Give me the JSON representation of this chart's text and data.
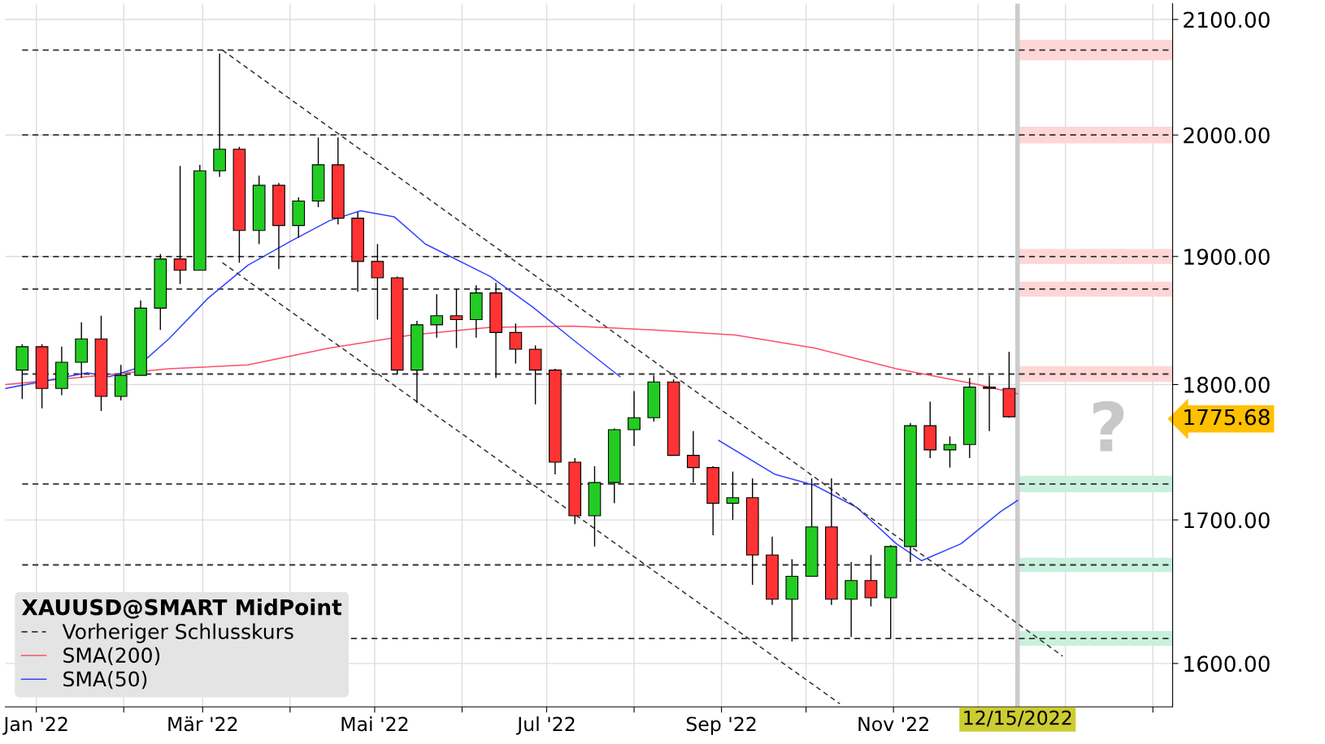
{
  "chart_data": {
    "type": "candlestick",
    "legend_title": "XAUUSD@SMART MidPoint",
    "x": [
      "2021-12-27",
      "2022-01-03",
      "2022-01-10",
      "2022-01-17",
      "2022-01-24",
      "2022-01-31",
      "2022-02-07",
      "2022-02-14",
      "2022-02-21",
      "2022-02-28",
      "2022-03-07",
      "2022-03-14",
      "2022-03-21",
      "2022-03-28",
      "2022-04-04",
      "2022-04-11",
      "2022-04-18",
      "2022-04-25",
      "2022-05-02",
      "2022-05-09",
      "2022-05-16",
      "2022-05-23",
      "2022-05-30",
      "2022-06-06",
      "2022-06-13",
      "2022-06-20",
      "2022-06-27",
      "2022-07-04",
      "2022-07-11",
      "2022-07-18",
      "2022-07-25",
      "2022-08-01",
      "2022-08-08",
      "2022-08-15",
      "2022-08-22",
      "2022-08-29",
      "2022-09-05",
      "2022-09-12",
      "2022-09-19",
      "2022-09-26",
      "2022-10-03",
      "2022-10-10",
      "2022-10-17",
      "2022-10-24",
      "2022-10-31",
      "2022-11-07",
      "2022-11-14",
      "2022-11-21",
      "2022-11-28",
      "2022-12-05",
      "2022-12-12"
    ],
    "ohlc": [
      [
        1811,
        1831,
        1789,
        1829
      ],
      [
        1829,
        1831,
        1782,
        1797
      ],
      [
        1797,
        1829,
        1792,
        1817
      ],
      [
        1817,
        1848,
        1805,
        1835
      ],
      [
        1835,
        1853,
        1780,
        1791
      ],
      [
        1791,
        1815,
        1788,
        1807
      ],
      [
        1807,
        1865,
        1807,
        1859
      ],
      [
        1859,
        1902,
        1842,
        1898
      ],
      [
        1898,
        1974,
        1878,
        1889
      ],
      [
        1889,
        1975,
        1889,
        1970
      ],
      [
        1970,
        2070,
        1965,
        1988
      ],
      [
        1988,
        1990,
        1895,
        1921
      ],
      [
        1921,
        1966,
        1910,
        1958
      ],
      [
        1958,
        1960,
        1890,
        1925
      ],
      [
        1925,
        1948,
        1915,
        1945
      ],
      [
        1945,
        1998,
        1940,
        1975
      ],
      [
        1975,
        1998,
        1926,
        1931
      ],
      [
        1931,
        1936,
        1872,
        1896
      ],
      [
        1896,
        1910,
        1850,
        1883
      ],
      [
        1883,
        1884,
        1808,
        1811
      ],
      [
        1811,
        1849,
        1786,
        1846
      ],
      [
        1846,
        1870,
        1836,
        1853
      ],
      [
        1853,
        1874,
        1828,
        1850
      ],
      [
        1850,
        1877,
        1836,
        1871
      ],
      [
        1871,
        1879,
        1805,
        1840
      ],
      [
        1840,
        1847,
        1816,
        1827
      ],
      [
        1827,
        1830,
        1785,
        1811
      ],
      [
        1811,
        1812,
        1733,
        1742
      ],
      [
        1742,
        1745,
        1697,
        1703
      ],
      [
        1703,
        1739,
        1681,
        1727
      ],
      [
        1727,
        1767,
        1712,
        1766
      ],
      [
        1766,
        1795,
        1754,
        1775
      ],
      [
        1775,
        1807,
        1772,
        1802
      ],
      [
        1802,
        1804,
        1747,
        1747
      ],
      [
        1747,
        1765,
        1727,
        1738
      ],
      [
        1738,
        1739,
        1689,
        1712
      ],
      [
        1712,
        1735,
        1700,
        1716
      ],
      [
        1716,
        1730,
        1654,
        1675
      ],
      [
        1675,
        1688,
        1640,
        1644
      ],
      [
        1644,
        1672,
        1615,
        1660
      ],
      [
        1660,
        1730,
        1660,
        1695
      ],
      [
        1695,
        1730,
        1640,
        1644
      ],
      [
        1644,
        1670,
        1618,
        1657
      ],
      [
        1657,
        1675,
        1639,
        1645
      ],
      [
        1645,
        1682,
        1617,
        1681
      ],
      [
        1681,
        1771,
        1670,
        1769
      ],
      [
        1769,
        1787,
        1745,
        1751
      ],
      [
        1751,
        1761,
        1738,
        1755
      ],
      [
        1755,
        1805,
        1745,
        1798
      ],
      [
        1798,
        1807,
        1765,
        1797
      ],
      [
        1797,
        1825,
        1775,
        1775.68
      ]
    ],
    "series": [
      {
        "type": "line",
        "name": "SMA(200)",
        "color": "#ff4d6d",
        "x": [
          "2021-12-21",
          "2022-01-19",
          "2022-02-17",
          "2022-03-17",
          "2022-04-15",
          "2022-05-14",
          "2022-06-11",
          "2022-07-10",
          "2022-08-08",
          "2022-09-06",
          "2022-10-04",
          "2022-11-02",
          "2022-12-01",
          "2022-12-15"
        ],
        "values": [
          1800,
          1806,
          1812,
          1815,
          1828,
          1838,
          1844,
          1845,
          1842,
          1838,
          1828,
          1812,
          1800,
          1793
        ]
      },
      {
        "type": "line",
        "name": "SMA(50)",
        "color": "#3344ff",
        "x": [
          "2021-12-21",
          "2022-01-19",
          "2022-01-27",
          "2022-02-05",
          "2022-02-17",
          "2022-03-03",
          "2022-03-17",
          "2022-04-01",
          "2022-04-15",
          "2022-04-26",
          "2022-05-08",
          "2022-05-19",
          "2022-06-11",
          "2022-06-26",
          "2022-07-10",
          "2022-07-27",
          "2022-08-14",
          "2022-08-31",
          "2022-09-20",
          "2022-10-04",
          "2022-10-19",
          "2022-11-02",
          "2022-11-11",
          "2022-11-25",
          "2022-12-09",
          "2022-12-15"
        ],
        "values": [
          1797,
          1809,
          1806,
          1812,
          1835,
          1867,
          1893,
          1912,
          1929,
          1937,
          1932,
          1910,
          1884,
          1860,
          1835,
          1806,
          null,
          1758,
          1733,
          1725,
          1709,
          1683,
          1671,
          1683,
          1706,
          1714
        ]
      },
      {
        "type": "line",
        "color": "#333333",
        "line_style": "dashed",
        "x": [
          "2022-03-08",
          "2022-12-31"
        ],
        "values": [
          2073,
          1605
        ]
      },
      {
        "type": "line",
        "color": "#333333",
        "line_style": "dashed",
        "x": [
          "2022-03-08",
          "2022-10-13"
        ],
        "values": [
          1895,
          1573
        ]
      }
    ],
    "ref_lines": [
      {
        "axis": "y",
        "value": 2073,
        "line_style": "dashed",
        "color": "#333333",
        "label": "Vorheriger Schlusskurs"
      },
      {
        "axis": "y",
        "value": 2000,
        "line_style": "dashed",
        "color": "#333333"
      },
      {
        "axis": "y",
        "value": 1900,
        "line_style": "dashed",
        "color": "#333333"
      },
      {
        "axis": "y",
        "value": 1874,
        "line_style": "dashed",
        "color": "#333333"
      },
      {
        "axis": "y",
        "value": 1808,
        "line_style": "dashed",
        "color": "#333333"
      },
      {
        "axis": "y",
        "value": 1726,
        "line_style": "dashed",
        "color": "#333333"
      },
      {
        "axis": "y",
        "value": 1668,
        "line_style": "dashed",
        "color": "#333333"
      },
      {
        "axis": "y",
        "value": 1617,
        "line_style": "dashed",
        "color": "#333333"
      },
      {
        "axis": "x",
        "value": "2022-12-15",
        "label": "12/15/2022",
        "color": "#cccccc",
        "line_style": "solid"
      }
    ],
    "bands": [
      {
        "axis": "y",
        "from": 2064,
        "to": 2082,
        "color": "#ffd6d6"
      },
      {
        "axis": "y",
        "from": 1993,
        "to": 2007,
        "color": "#ffd6d6"
      },
      {
        "axis": "y",
        "from": 1894,
        "to": 1906,
        "color": "#ffd6d6"
      },
      {
        "axis": "y",
        "from": 1868,
        "to": 1880,
        "color": "#ffd6d6"
      },
      {
        "axis": "y",
        "from": 1802,
        "to": 1814,
        "color": "#ffd6d6"
      },
      {
        "axis": "y",
        "from": 1720,
        "to": 1732,
        "color": "#c8f0dc"
      },
      {
        "axis": "y",
        "from": 1663,
        "to": 1673,
        "color": "#c8f0dc"
      },
      {
        "axis": "y",
        "from": 1612,
        "to": 1622,
        "color": "#c8f0dc"
      }
    ],
    "annotations": [
      "?"
    ],
    "log": true,
    "xlim": [
      "2021-12-21",
      "2023-02-08"
    ],
    "ylim": [
      1571,
      2114
    ],
    "yticks": [
      {
        "value": 1600,
        "label": "1600.00"
      },
      {
        "value": 1700,
        "label": "1700.00"
      },
      {
        "value": 1775.68,
        "label": "1775.68"
      },
      {
        "value": 1800,
        "label": "1800.00"
      },
      {
        "value": 1900,
        "label": "1900.00"
      },
      {
        "value": 2000,
        "label": "2000.00"
      },
      {
        "value": 2100,
        "label": "2100.00"
      }
    ],
    "xticks": [
      {
        "value": "2022-01-01",
        "label": "Jan '22"
      },
      {
        "value": "2022-02-01",
        "label": null
      },
      {
        "value": "2022-03-01",
        "label": "Mär '22"
      },
      {
        "value": "2022-04-01",
        "label": null
      },
      {
        "value": "2022-05-01",
        "label": "Mai '22"
      },
      {
        "value": "2022-06-01",
        "label": null
      },
      {
        "value": "2022-07-01",
        "label": "Jul '22"
      },
      {
        "value": "2022-08-01",
        "label": null
      },
      {
        "value": "2022-09-01",
        "label": "Sep '22"
      },
      {
        "value": "2022-10-01",
        "label": null
      },
      {
        "value": "2022-11-01",
        "label": "Nov '22"
      },
      {
        "value": "2022-12-01",
        "label": null
      },
      {
        "value": "2023-01-01",
        "label": null
      },
      {
        "value": "2023-02-01",
        "label": null
      }
    ],
    "grid": true,
    "legend": "bottom left"
  }
}
